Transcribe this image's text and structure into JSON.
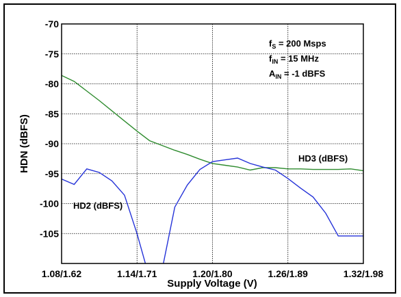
{
  "chart_data": {
    "type": "line",
    "xlabel": "Supply Voltage (V)",
    "ylabel": "HDN (dBFS)",
    "x_tick_labels": [
      "1.08/1.62",
      "1.14/1.71",
      "1.20/1.80",
      "1.26/1.89",
      "1.32/1.98"
    ],
    "x_ticks": [
      1.08,
      1.14,
      1.2,
      1.26,
      1.32
    ],
    "xlim": [
      1.08,
      1.32
    ],
    "ylim": [
      -110,
      -70
    ],
    "y_ticks": [
      -105,
      -100,
      -95,
      -90,
      -85,
      -80,
      -75,
      -70
    ],
    "grid": true,
    "colors": {
      "HD3 (dBFS)": "#2e8b2e",
      "HD2 (dBFS)": "#2432d8"
    },
    "annotations": {
      "fs": {
        "main": "f",
        "sub": "S",
        "rest": " = 200 Msps"
      },
      "fin": {
        "main": "f",
        "sub": "IN",
        "rest": " = 15 MHz"
      },
      "ain": {
        "main": "A",
        "sub": "IN",
        "rest": " = -1 dBFS"
      }
    },
    "series": [
      {
        "name": "HD3 (dBFS)",
        "label_near": [
          1.255,
          -93.2
        ],
        "x": [
          1.08,
          1.09,
          1.1,
          1.11,
          1.12,
          1.13,
          1.14,
          1.15,
          1.16,
          1.17,
          1.18,
          1.19,
          1.2,
          1.21,
          1.22,
          1.23,
          1.24,
          1.25,
          1.26,
          1.27,
          1.28,
          1.29,
          1.3,
          1.31,
          1.32
        ],
        "values": [
          -78.6,
          -79.6,
          -81.2,
          -82.8,
          -84.5,
          -86.2,
          -87.9,
          -89.5,
          -90.3,
          -91.1,
          -91.8,
          -92.6,
          -93.3,
          -93.6,
          -93.9,
          -94.4,
          -94.0,
          -94.0,
          -94.2,
          -94.2,
          -94.3,
          -94.3,
          -94.3,
          -94.2,
          -94.5
        ]
      },
      {
        "name": "HD2 (dBFS)",
        "label_near": [
          1.085,
          -100.3
        ],
        "x": [
          1.08,
          1.09,
          1.1,
          1.11,
          1.12,
          1.13,
          1.14,
          1.15,
          1.16,
          1.17,
          1.18,
          1.19,
          1.2,
          1.21,
          1.22,
          1.23,
          1.24,
          1.25,
          1.26,
          1.27,
          1.28,
          1.29,
          1.3,
          1.31,
          1.32
        ],
        "values": [
          -95.9,
          -96.8,
          -94.2,
          -94.8,
          -96.2,
          -98.6,
          -105.0,
          -112.5,
          -111.0,
          -100.6,
          -96.9,
          -94.3,
          -93.0,
          -92.7,
          -92.4,
          -93.3,
          -93.9,
          -94.4,
          -95.8,
          -97.4,
          -98.9,
          -101.6,
          -105.4,
          -105.4,
          -105.4
        ]
      }
    ]
  }
}
